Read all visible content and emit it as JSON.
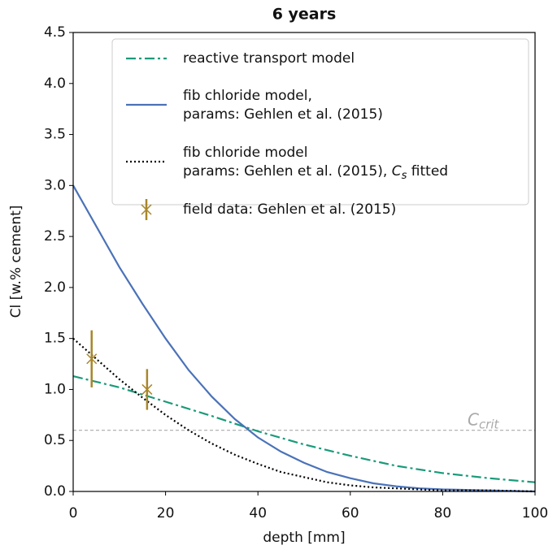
{
  "chart_data": {
    "type": "line",
    "title": "6 years",
    "x_label": "depth [mm]",
    "y_label": "Cl [w.% cement]",
    "xlim": [
      0,
      100
    ],
    "ylim": [
      0,
      4.5
    ],
    "xticks": [
      0,
      20,
      40,
      60,
      80,
      100
    ],
    "yticks": [
      {
        "value": 0,
        "label": "0.0"
      },
      {
        "value": 0.5,
        "label": "0.5"
      },
      {
        "value": 1,
        "label": "1.0"
      },
      {
        "value": 1.5,
        "label": "1.5"
      },
      {
        "value": 2,
        "label": "2.0"
      },
      {
        "value": 2.5,
        "label": "2.5"
      },
      {
        "value": 3,
        "label": "3.0"
      },
      {
        "value": 3.5,
        "label": "3.5"
      },
      {
        "value": 4,
        "label": "4.0"
      },
      {
        "value": 4.5,
        "label": "4.5"
      }
    ],
    "legend": "upper right",
    "series": [
      {
        "name": "reactive transport model",
        "color": "#1a9a7a",
        "style": "dashdot",
        "x": [
          0,
          10,
          20,
          30,
          40,
          50,
          60,
          70,
          80,
          90,
          100
        ],
        "values": [
          1.13,
          1.02,
          0.88,
          0.74,
          0.59,
          0.46,
          0.35,
          0.25,
          0.18,
          0.13,
          0.09
        ]
      },
      {
        "name": "fib chloride model,",
        "name_line2": "params: Gehlen et al. (2015)",
        "color": "#4a72b8",
        "style": "solid",
        "x": [
          0,
          5,
          10,
          15,
          20,
          25,
          30,
          35,
          40,
          45,
          50,
          55,
          60,
          65,
          70,
          75,
          80,
          90,
          100
        ],
        "values": [
          3.0,
          2.6,
          2.2,
          1.84,
          1.5,
          1.19,
          0.93,
          0.71,
          0.53,
          0.39,
          0.28,
          0.19,
          0.13,
          0.08,
          0.05,
          0.03,
          0.02,
          0.01,
          0.0
        ]
      },
      {
        "name": "fib chloride model",
        "name_line2": {
          "text": "params: Gehlen et al. (2015), ",
          "italic": "C",
          "sub": "s",
          "after": " fitted"
        },
        "color": "#000000",
        "style": "dotted",
        "x": [
          0,
          5,
          10,
          15,
          20,
          25,
          30,
          35,
          40,
          45,
          50,
          55,
          60,
          65,
          70,
          75,
          80,
          90,
          100
        ],
        "values": [
          1.5,
          1.3,
          1.1,
          0.92,
          0.75,
          0.6,
          0.47,
          0.36,
          0.27,
          0.19,
          0.14,
          0.09,
          0.06,
          0.04,
          0.03,
          0.02,
          0.01,
          0.01,
          0.0
        ]
      },
      {
        "name": "field data: Gehlen et al. (2015)",
        "color": "#a8862a",
        "style": "errorbar",
        "x": [
          4,
          16
        ],
        "values": [
          1.3,
          1.0
        ],
        "errors": [
          0.28,
          0.2
        ]
      }
    ],
    "hlines": [
      {
        "value": 0.6,
        "color": "#aaaaaa",
        "label": "C",
        "sub": "crit"
      }
    ]
  }
}
